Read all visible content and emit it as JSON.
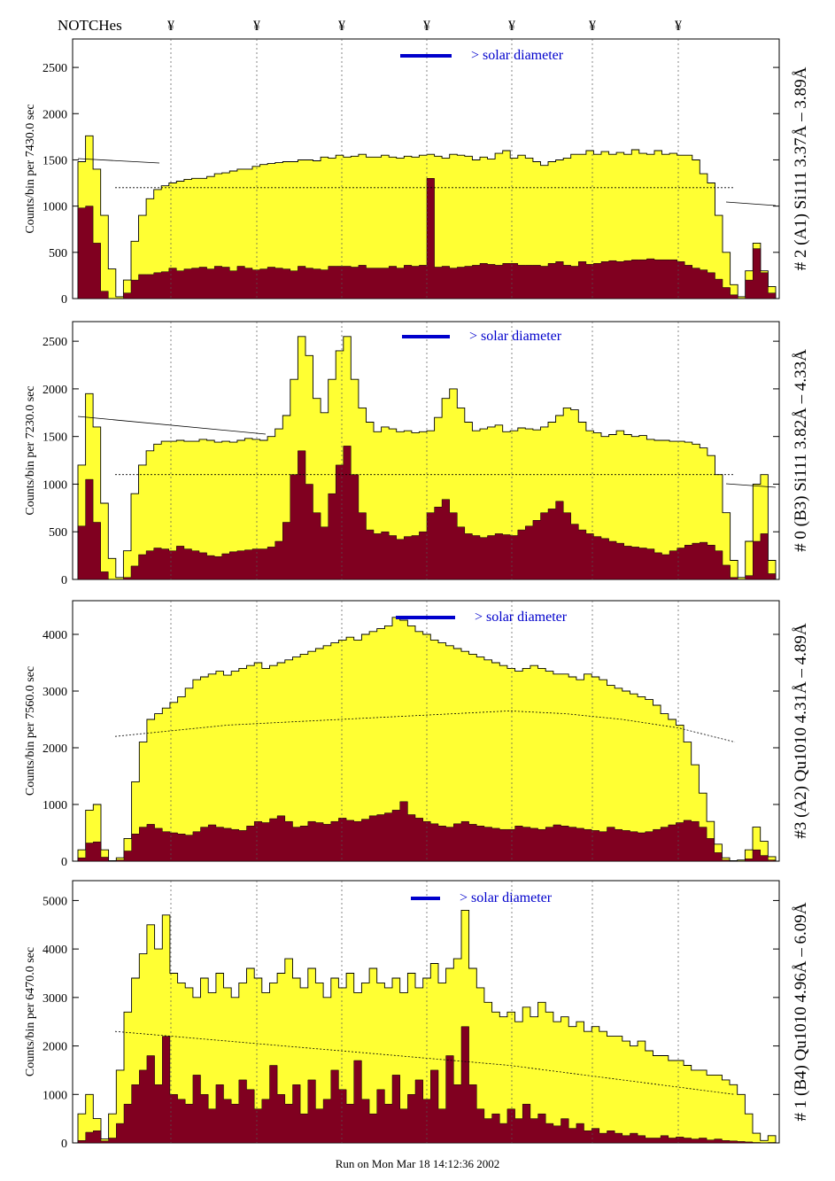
{
  "header": {
    "notch_label": "NOTCHes",
    "notch_symbol": "¥",
    "notch_count": 7
  },
  "footer": {
    "run_text": "Run on Mon Mar 18 14:12:36 2002"
  },
  "colors": {
    "envelope_fill": "#ffff33",
    "signal_fill": "#800020",
    "annotation_blue": "#0000cc",
    "line": "#000000"
  },
  "chart_data": [
    {
      "type": "area",
      "ylabel": "Counts/bin per   7430.0 sec",
      "right_label": "# 2 (A1) Si111  3.37Å – 3.89Å",
      "legend": "> solar diameter",
      "yticks": [
        0,
        500,
        1000,
        1500,
        2000,
        2500
      ],
      "ylim": [
        0,
        2750
      ],
      "series": [
        {
          "values": [
            1480,
            1760,
            1400,
            900,
            320,
            20,
            200,
            620,
            900,
            1080,
            1180,
            1220,
            1250,
            1270,
            1290,
            1300,
            1300,
            1320,
            1350,
            1360,
            1380,
            1400,
            1400,
            1430,
            1450,
            1460,
            1470,
            1480,
            1480,
            1500,
            1500,
            1490,
            1530,
            1520,
            1550,
            1530,
            1540,
            1560,
            1530,
            1530,
            1550,
            1530,
            1520,
            1540,
            1530,
            1550,
            1560,
            1540,
            1520,
            1560,
            1550,
            1540,
            1500,
            1530,
            1510,
            1570,
            1600,
            1520,
            1550,
            1520,
            1480,
            1440,
            1480,
            1500,
            1520,
            1560,
            1560,
            1600,
            1560,
            1590,
            1560,
            1580,
            1560,
            1610,
            1570,
            1560,
            1600,
            1560,
            1570,
            1550,
            1550,
            1500,
            1350,
            1250,
            900,
            500,
            150,
            20,
            300,
            600,
            300,
            130
          ]
        },
        {
          "values": [
            980,
            1000,
            600,
            80,
            0,
            0,
            60,
            200,
            260,
            260,
            280,
            290,
            330,
            300,
            320,
            330,
            340,
            320,
            350,
            340,
            300,
            350,
            330,
            310,
            320,
            340,
            330,
            320,
            300,
            350,
            330,
            320,
            310,
            350,
            350,
            350,
            340,
            360,
            330,
            330,
            330,
            350,
            330,
            360,
            350,
            360,
            1300,
            340,
            350,
            330,
            340,
            350,
            360,
            380,
            370,
            360,
            380,
            380,
            360,
            360,
            360,
            350,
            380,
            400,
            360,
            350,
            400,
            370,
            380,
            400,
            410,
            400,
            410,
            420,
            420,
            430,
            420,
            420,
            420,
            400,
            360,
            330,
            310,
            280,
            210,
            120,
            40,
            0,
            200,
            540,
            280,
            60
          ]
        },
        {
          "values": [
            1200,
            1200,
            1200,
            1200,
            1200,
            1200,
            1200,
            1200,
            1200,
            1200,
            1200,
            1200
          ]
        }
      ]
    },
    {
      "type": "area",
      "ylabel": "Counts/bin per   7230.0 sec",
      "right_label": "# 0 (B3) Si111  3.82Å – 4.33Å",
      "legend": "> solar diameter",
      "yticks": [
        0,
        500,
        1000,
        1500,
        2000,
        2500
      ],
      "ylim": [
        0,
        2650
      ],
      "series": [
        {
          "values": [
            1200,
            1950,
            1600,
            800,
            220,
            20,
            300,
            900,
            1200,
            1350,
            1420,
            1450,
            1450,
            1460,
            1450,
            1450,
            1470,
            1460,
            1440,
            1450,
            1440,
            1460,
            1480,
            1470,
            1460,
            1500,
            1580,
            1720,
            2100,
            2550,
            2350,
            1900,
            1750,
            2100,
            2400,
            2550,
            2100,
            1800,
            1650,
            1550,
            1600,
            1580,
            1550,
            1560,
            1540,
            1550,
            1560,
            1700,
            1900,
            2000,
            1800,
            1650,
            1560,
            1580,
            1600,
            1620,
            1550,
            1560,
            1590,
            1580,
            1570,
            1600,
            1650,
            1720,
            1800,
            1780,
            1650,
            1560,
            1540,
            1500,
            1520,
            1560,
            1520,
            1500,
            1510,
            1470,
            1460,
            1460,
            1450,
            1450,
            1440,
            1420,
            1380,
            1300,
            1100,
            700,
            200,
            20,
            400,
            1000,
            1100,
            200
          ]
        },
        {
          "values": [
            560,
            1050,
            600,
            80,
            0,
            0,
            20,
            140,
            260,
            300,
            330,
            320,
            300,
            350,
            320,
            300,
            280,
            250,
            240,
            270,
            290,
            300,
            310,
            320,
            320,
            340,
            400,
            600,
            1100,
            1350,
            1000,
            700,
            550,
            900,
            1200,
            1400,
            1100,
            700,
            520,
            480,
            500,
            460,
            420,
            450,
            460,
            500,
            700,
            760,
            840,
            700,
            550,
            480,
            460,
            440,
            460,
            480,
            470,
            460,
            520,
            560,
            620,
            700,
            740,
            820,
            700,
            580,
            520,
            480,
            450,
            430,
            400,
            380,
            350,
            340,
            330,
            320,
            280,
            260,
            300,
            330,
            360,
            380,
            390,
            360,
            300,
            150,
            20,
            0,
            40,
            400,
            480,
            60
          ]
        },
        {
          "values": [
            1100,
            1100,
            1100,
            1100,
            1100,
            1100,
            1100,
            1100,
            1100,
            1100,
            1100,
            1100
          ]
        }
      ]
    },
    {
      "type": "area",
      "ylabel": "Counts/bin per   7560.0 sec",
      "right_label": "#3 (A2) Qu1010  4.31Å – 4.89Å",
      "legend": "> solar diameter",
      "yticks": [
        0,
        1000,
        2000,
        3000,
        4000
      ],
      "ylim": [
        0,
        4500
      ],
      "series": [
        {
          "values": [
            200,
            900,
            1000,
            200,
            10,
            60,
            400,
            1400,
            2100,
            2500,
            2600,
            2700,
            2800,
            2900,
            3050,
            3200,
            3250,
            3300,
            3350,
            3280,
            3350,
            3400,
            3450,
            3500,
            3400,
            3450,
            3500,
            3550,
            3600,
            3650,
            3700,
            3750,
            3800,
            3850,
            3900,
            3950,
            3900,
            4000,
            4050,
            4100,
            4150,
            4300,
            4250,
            4150,
            4050,
            4000,
            3900,
            3850,
            3800,
            3750,
            3700,
            3650,
            3600,
            3550,
            3500,
            3450,
            3400,
            3350,
            3400,
            3450,
            3400,
            3350,
            3300,
            3300,
            3250,
            3200,
            3300,
            3250,
            3200,
            3100,
            3050,
            3000,
            2950,
            2900,
            2850,
            2750,
            2600,
            2500,
            2400,
            2100,
            1700,
            1200,
            700,
            300,
            60,
            10,
            20,
            200,
            600,
            350,
            80
          ]
        },
        {
          "values": [
            60,
            320,
            340,
            70,
            0,
            20,
            180,
            480,
            600,
            650,
            580,
            520,
            500,
            480,
            460,
            520,
            600,
            640,
            600,
            580,
            560,
            540,
            620,
            700,
            680,
            750,
            800,
            700,
            600,
            620,
            700,
            680,
            650,
            700,
            760,
            720,
            700,
            740,
            800,
            820,
            850,
            900,
            1050,
            820,
            760,
            700,
            660,
            620,
            600,
            660,
            700,
            650,
            620,
            600,
            580,
            560,
            560,
            620,
            600,
            580,
            560,
            600,
            640,
            620,
            600,
            580,
            560,
            540,
            520,
            600,
            560,
            540,
            520,
            500,
            520,
            560,
            600,
            640,
            680,
            720,
            700,
            600,
            400,
            150,
            20,
            0,
            0,
            40,
            200,
            100,
            20
          ]
        },
        {
          "values": [
            2200,
            2300,
            2400,
            2450,
            2500,
            2550,
            2600,
            2650,
            2600,
            2500,
            2350,
            2100
          ]
        }
      ]
    },
    {
      "type": "area",
      "ylabel": "Counts/bin per   6470.0 sec",
      "right_label": "# 1 (B4) Qu1010 4.96Å – 6.09Å",
      "legend": "> solar diameter",
      "yticks": [
        0,
        1000,
        2000,
        3000,
        4000,
        5000
      ],
      "ylim": [
        0,
        5300
      ],
      "series": [
        {
          "values": [
            600,
            1000,
            500,
            80,
            600,
            1500,
            2700,
            3400,
            3900,
            4500,
            4000,
            4700,
            3500,
            3300,
            3200,
            3000,
            3400,
            3100,
            3500,
            3200,
            3000,
            3300,
            3600,
            3400,
            3100,
            3300,
            3500,
            3800,
            3400,
            3200,
            3600,
            3300,
            3000,
            3400,
            3200,
            3500,
            3100,
            3300,
            3600,
            3300,
            3200,
            3400,
            3100,
            3500,
            3200,
            3400,
            3700,
            3300,
            3600,
            3800,
            4800,
            3600,
            3200,
            2900,
            2700,
            2600,
            2700,
            2500,
            2800,
            2600,
            2900,
            2700,
            2500,
            2600,
            2400,
            2500,
            2300,
            2400,
            2300,
            2200,
            2200,
            2100,
            2000,
            2100,
            1900,
            1800,
            1800,
            1700,
            1700,
            1600,
            1500,
            1500,
            1400,
            1400,
            1300,
            1200,
            1000,
            600,
            200,
            50,
            150
          ]
        },
        {
          "values": [
            50,
            220,
            250,
            40,
            100,
            400,
            800,
            1200,
            1500,
            1800,
            1200,
            2200,
            1000,
            900,
            800,
            1400,
            1000,
            700,
            1200,
            900,
            800,
            1300,
            1100,
            700,
            900,
            1600,
            1000,
            800,
            1200,
            600,
            1300,
            700,
            900,
            1500,
            1100,
            800,
            1700,
            900,
            600,
            1100,
            800,
            1400,
            700,
            1000,
            1300,
            900,
            1500,
            700,
            1800,
            1200,
            2400,
            1200,
            700,
            500,
            600,
            400,
            700,
            500,
            800,
            500,
            600,
            400,
            350,
            500,
            300,
            400,
            250,
            300,
            200,
            250,
            200,
            150,
            200,
            150,
            100,
            100,
            150,
            100,
            120,
            100,
            80,
            100,
            60,
            80,
            50,
            40,
            30,
            20,
            10,
            0,
            10
          ]
        },
        {
          "values": [
            2300,
            2200,
            2100,
            2000,
            1900,
            1800,
            1700,
            1600,
            1450,
            1300,
            1150,
            1000
          ]
        }
      ]
    }
  ]
}
